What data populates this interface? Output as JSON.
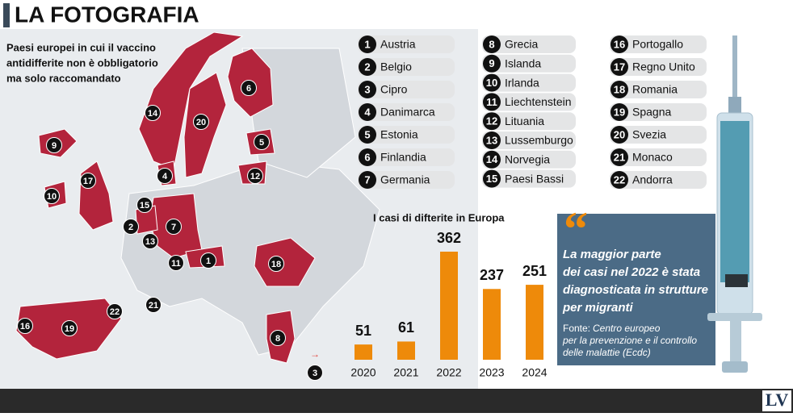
{
  "header": {
    "title": "LA FOTOGRAFIA"
  },
  "map": {
    "subtitle_lines": [
      "Paesi europei in cui il vaccino",
      "antidifferite non è obbligatorio",
      "ma solo raccomandato"
    ]
  },
  "countries": [
    {
      "number": 1,
      "name": "Austria"
    },
    {
      "number": 2,
      "name": "Belgio"
    },
    {
      "number": 3,
      "name": "Cipro"
    },
    {
      "number": 4,
      "name": "Danimarca"
    },
    {
      "number": 5,
      "name": "Estonia"
    },
    {
      "number": 6,
      "name": "Finlandia"
    },
    {
      "number": 7,
      "name": "Germania"
    },
    {
      "number": 8,
      "name": "Grecia"
    },
    {
      "number": 9,
      "name": "Islanda"
    },
    {
      "number": 10,
      "name": "Irlanda"
    },
    {
      "number": 11,
      "name": "Liechtenstein"
    },
    {
      "number": 12,
      "name": "Lituania"
    },
    {
      "number": 13,
      "name": "Lussemburgo"
    },
    {
      "number": 14,
      "name": "Norvegia"
    },
    {
      "number": 15,
      "name": "Paesi Bassi"
    },
    {
      "number": 16,
      "name": "Portogallo"
    },
    {
      "number": 17,
      "name": "Regno Unito"
    },
    {
      "number": 18,
      "name": "Romania"
    },
    {
      "number": 19,
      "name": "Spagna"
    },
    {
      "number": 20,
      "name": "Svezia"
    },
    {
      "number": 21,
      "name": "Monaco"
    },
    {
      "number": 22,
      "name": "Andorra"
    }
  ],
  "chart_data": {
    "type": "bar",
    "title": "I casi di difterite in Europa",
    "categories": [
      "2020",
      "2021",
      "2022",
      "2023",
      "2024"
    ],
    "values": [
      51,
      61,
      362,
      237,
      251
    ],
    "color": "#ee8a0a"
  },
  "quote": {
    "lines": [
      "La maggior parte",
      "dei casi nel 2022 è stata",
      "diagnosticata in strutture",
      "per migranti"
    ]
  },
  "source": {
    "label": "Fonte:",
    "lines": [
      "Centro europeo",
      "per la prevenzione e il controllo",
      "delle malattie (Ecdc)"
    ]
  },
  "footer": {
    "logo": "LV"
  }
}
